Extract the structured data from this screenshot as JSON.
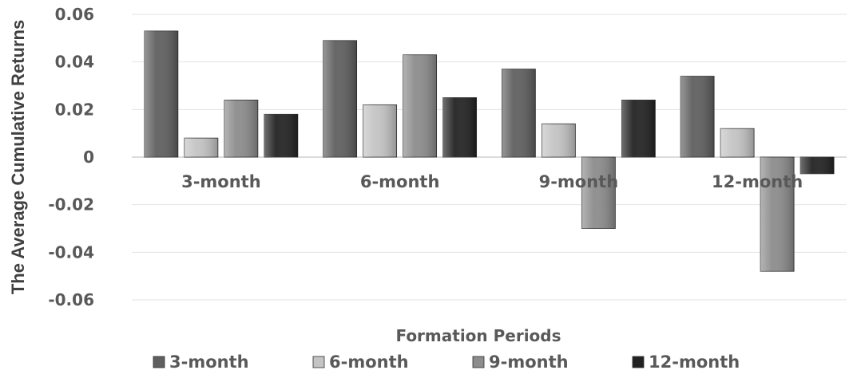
{
  "chart_data": {
    "type": "bar",
    "title": "",
    "xlabel": "Formation Periods",
    "ylabel": "The Average Cumulative Returns",
    "categories": [
      "3-month",
      "6-month",
      "9-month",
      "12-month"
    ],
    "ylim": [
      -0.06,
      0.06
    ],
    "yticks": [
      0.06,
      0.04,
      0.02,
      0,
      -0.02,
      -0.04,
      -0.06
    ],
    "ytick_labels": [
      "0.06",
      "0.04",
      "0.02",
      "0",
      "-0.02",
      "-0.04",
      "-0.06"
    ],
    "grid": true,
    "legend_position": "bottom",
    "series": [
      {
        "name": "3-month",
        "values": [
          0.053,
          0.049,
          0.037,
          0.034
        ],
        "color": "#5f5f5f"
      },
      {
        "name": "6-month",
        "values": [
          0.008,
          0.022,
          0.014,
          0.012
        ],
        "color": "#c4c4c4"
      },
      {
        "name": "9-month",
        "values": [
          0.024,
          0.043,
          -0.03,
          -0.048
        ],
        "color": "#8c8c8c"
      },
      {
        "name": "12-month",
        "values": [
          0.018,
          0.025,
          0.024,
          -0.007
        ],
        "color": "#222222"
      }
    ]
  }
}
